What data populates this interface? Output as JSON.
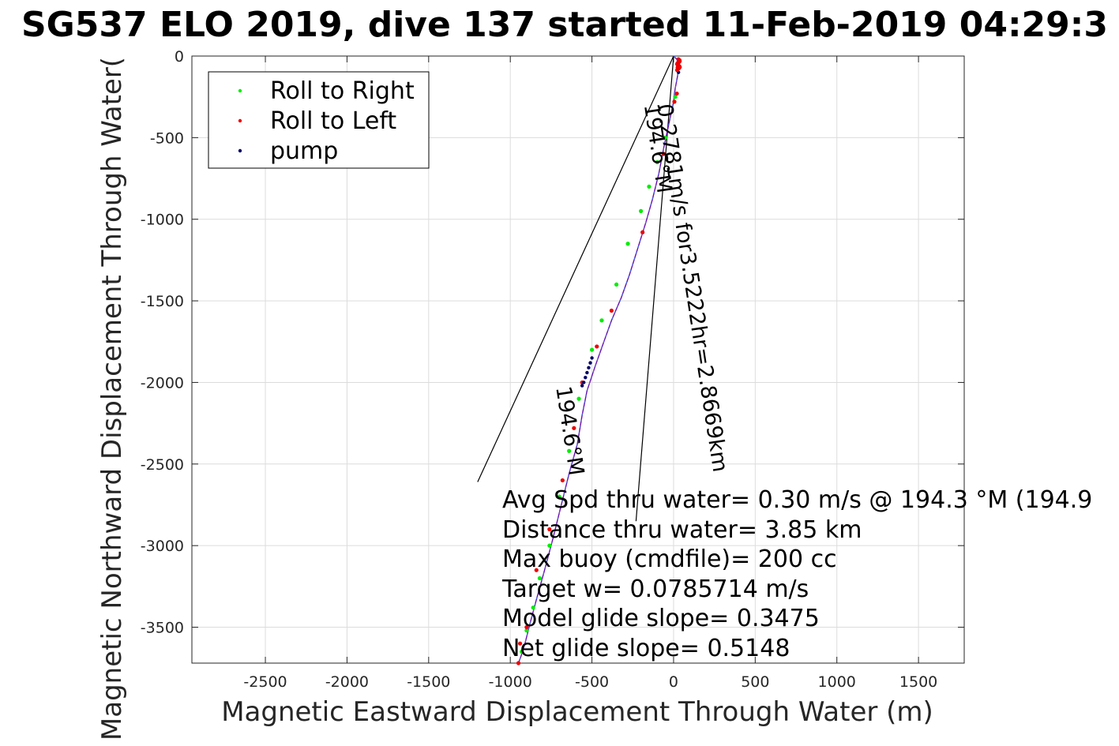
{
  "chart_data": {
    "type": "scatter",
    "title": "SG537 ELO 2019, dive 137 started 11-Feb-2019 04:29:3",
    "xlabel": "Magnetic Eastward Displacement Through Water (m)",
    "ylabel": "Magnetic Northward Displacement Through Water(",
    "xlim": [
      -2950,
      1780
    ],
    "ylim": [
      -3720,
      0
    ],
    "x_ticks": [
      -2500,
      -2000,
      -1500,
      -1000,
      -500,
      0,
      500,
      1000,
      1500
    ],
    "y_ticks": [
      0,
      -500,
      -1000,
      -1500,
      -2000,
      -2500,
      -3000,
      -3500
    ],
    "grid": true,
    "legend": {
      "placement": "top-left",
      "entries": [
        {
          "label": "Roll to Right",
          "color": "#00ee00"
        },
        {
          "label": "Roll to Left",
          "color": "#ee0000"
        },
        {
          "label": "pump",
          "color": "#000066"
        }
      ]
    },
    "track": {
      "color": "#6a0dad",
      "x": [
        0,
        20,
        30,
        25,
        10,
        0,
        -30,
        -60,
        -90,
        -130,
        -170,
        -220,
        -270,
        -320,
        -380,
        -430,
        -480,
        -530,
        -560,
        -590,
        -640,
        -690,
        -740,
        -790,
        -840,
        -880,
        -910,
        -935,
        -950
      ],
      "y": [
        0,
        -20,
        -60,
        -120,
        -200,
        -280,
        -420,
        -560,
        -720,
        -880,
        -1020,
        -1180,
        -1340,
        -1480,
        -1620,
        -1760,
        -1900,
        -2050,
        -2200,
        -2380,
        -2560,
        -2760,
        -2960,
        -3150,
        -3330,
        -3480,
        -3600,
        -3680,
        -3720
      ]
    },
    "series": [
      {
        "name": "Roll to Right",
        "color": "#00ee00",
        "x": [
          10,
          -50,
          -100,
          -150,
          -200,
          -280,
          -350,
          -440,
          -500,
          -580,
          -640,
          -700,
          -760,
          -820,
          -860,
          -900,
          -930
        ],
        "y": [
          -250,
          -500,
          -650,
          -800,
          -950,
          -1150,
          -1400,
          -1620,
          -1800,
          -2100,
          -2420,
          -2700,
          -3000,
          -3200,
          -3380,
          -3520,
          -3650
        ]
      },
      {
        "name": "Roll to Left",
        "color": "#ee0000",
        "x": [
          30,
          25,
          20,
          5,
          -60,
          -190,
          -380,
          -470,
          -560,
          -610,
          -680,
          -760,
          -840,
          -900,
          -940,
          -950
        ],
        "y": [
          -40,
          -70,
          -230,
          -280,
          -600,
          -1080,
          -1560,
          -1780,
          -2000,
          -2280,
          -2600,
          -2900,
          -3150,
          -3500,
          -3600,
          -3720
        ]
      },
      {
        "name": "pump",
        "color": "#000066",
        "x": [
          30,
          -500,
          -510,
          -520,
          -530,
          -540,
          -550,
          -560
        ],
        "y": [
          -100,
          -1850,
          -1880,
          -1910,
          -1940,
          -1970,
          -2000,
          -2020
        ]
      }
    ],
    "wedge_lines": [
      {
        "x": [
          0,
          -1200
        ],
        "y": [
          0,
          -2610
        ]
      },
      {
        "x": [
          0,
          -230
        ],
        "y": [
          0,
          -2850
        ]
      }
    ],
    "rotated_labels": [
      {
        "text": "0.2781m/s for3.5222hr=2.8669km",
        "x": -100,
        "y": -300
      },
      {
        "text": "194.6°M",
        "x": -180,
        "y": -300
      },
      {
        "text": "194.6°M",
        "x": -720,
        "y": -2030
      }
    ],
    "annotations": [
      "Avg Spd thru water=  0.30 m/s @ 194.3 °M (194.9",
      "Distance thru water=  3.85 km",
      "Max buoy (cmdfile)= 200 cc",
      "Target w= 0.0785714 m/s",
      "Model glide slope= 0.3475",
      "Net glide slope= 0.5148"
    ]
  }
}
